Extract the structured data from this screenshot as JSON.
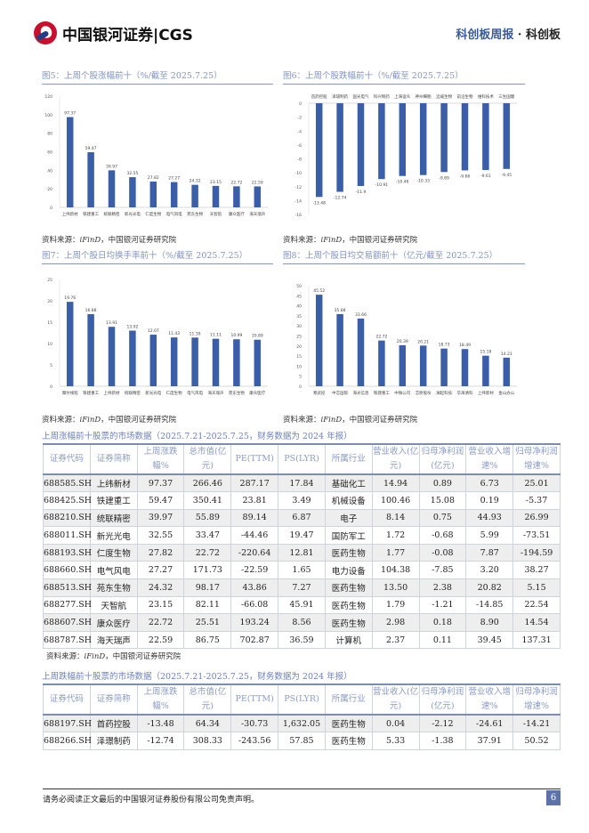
{
  "header": {
    "brand": "中国银河证券|CGS",
    "report": "科创板周报",
    "separator": " · ",
    "section": "科创板"
  },
  "figures": [
    {
      "caption": "图5：上周个股涨幅前十（%/截至 2025.7.25）",
      "source_prefix": "资料来源：",
      "source_italic": "iFinD",
      "source_rest": "，中国银河证券研究院"
    },
    {
      "caption": "图6：上周个股跌幅前十（%/截至 2025.7.25）",
      "source_prefix": "资料来源：",
      "source_italic": "iFinD",
      "source_rest": "，中国银河证券研究院"
    },
    {
      "caption": "图7：上周个股日均换手率前十（%/截至 2025.7.25）",
      "source_prefix": "资料来源：",
      "source_italic": "iFinD",
      "source_rest": "，中国银河证券研究院"
    },
    {
      "caption": "图8：上周个股日均交易额前十（亿元/截至 2025.7.25）",
      "source_prefix": "资料来源：",
      "source_italic": "iFinD",
      "source_rest": "，中国银河证券研究院"
    }
  ],
  "chart_data": [
    {
      "type": "bar",
      "categories": [
        "上纬新材",
        "铁建重工",
        "统联精密",
        "新光光电",
        "仁度生物",
        "电气风电",
        "苑东生物",
        "天智航",
        "康众医疗",
        "海天瑞声"
      ],
      "values": [
        97.37,
        59.47,
        39.97,
        32.55,
        27.82,
        27.27,
        24.32,
        23.15,
        22.72,
        22.59
      ],
      "ylim": [
        0,
        120
      ],
      "yticks": [
        0,
        20,
        40,
        60,
        80,
        100,
        120
      ],
      "color": "#3a5ea8"
    },
    {
      "type": "bar",
      "categories": [
        "首药控股",
        "泽璟制药",
        "国光电气",
        "科兴制药",
        "上海谊众",
        "神州细胞",
        "迈威生物",
        "前沿生物",
        "维科技术",
        "三生国健"
      ],
      "values": [
        -13.48,
        -12.74,
        -11.9,
        -10.91,
        -10.46,
        -10.33,
        -9.89,
        -9.66,
        -9.61,
        -9.45
      ],
      "ylim": [
        -16,
        0
      ],
      "yticks": [
        0,
        -2,
        -4,
        -6,
        -8,
        -10,
        -12,
        -14,
        -16
      ],
      "color": "#3a5ea8"
    },
    {
      "type": "bar",
      "categories": [
        "摩尔线程",
        "铁建重工",
        "上纬新材",
        "统联精密",
        "新光光电",
        "仁度生物",
        "电气风电",
        "海天瑞声",
        "苑东生物",
        "康众医疗"
      ],
      "values": [
        19.76,
        16.88,
        13.91,
        13.02,
        12.07,
        11.43,
        11.39,
        11.11,
        10.99,
        10.89
      ],
      "ylim": [
        0,
        25
      ],
      "yticks": [
        0,
        5,
        10,
        15,
        20,
        25
      ],
      "color": "#3a5ea8"
    },
    {
      "type": "bar",
      "categories": [
        "寒武纪",
        "中芯国际",
        "海光信息",
        "铁建重工",
        "中微公司",
        "芯原股份",
        "澜起科技",
        "华海清科",
        "上纬新材",
        "金山办公"
      ],
      "values": [
        45.52,
        35.88,
        33.66,
        22.72,
        20.39,
        20.21,
        18.73,
        18.49,
        15.18,
        14.21
      ],
      "ylim": [
        0,
        50
      ],
      "yticks": [
        0,
        5,
        10,
        15,
        20,
        25,
        30,
        35,
        40,
        45,
        50
      ],
      "color": "#3a5ea8"
    }
  ],
  "table1": {
    "title": "上周涨幅前十股票的市场数据（2025.7.21-2025.7.25，财务数据为 2024 年报）",
    "headers": [
      "证券代码",
      "证券简称",
      "上周涨跌幅%",
      "总市值(亿元)",
      "PE(TTM)",
      "PS(LYR)",
      "所属行业",
      "营业收入(亿元)",
      "归母净利润(亿元)",
      "营业收入增速%",
      "归母净利润增速%"
    ],
    "rows": [
      [
        "688585.SH",
        "上纬新材",
        "97.37",
        "266.46",
        "287.17",
        "17.84",
        "基础化工",
        "14.94",
        "0.89",
        "6.73",
        "25.01"
      ],
      [
        "688425.SH",
        "铁建重工",
        "59.47",
        "350.41",
        "23.81",
        "3.49",
        "机械设备",
        "100.46",
        "15.08",
        "0.19",
        "-5.37"
      ],
      [
        "688210.SH",
        "统联精密",
        "39.97",
        "55.89",
        "89.14",
        "6.87",
        "电子",
        "8.14",
        "0.75",
        "44.93",
        "26.99"
      ],
      [
        "688011.SH",
        "新光光电",
        "32.55",
        "33.47",
        "-44.46",
        "19.47",
        "国防军工",
        "1.72",
        "-0.68",
        "5.99",
        "-73.51"
      ],
      [
        "688193.SH",
        "仁度生物",
        "27.82",
        "22.72",
        "-220.64",
        "12.81",
        "医药生物",
        "1.77",
        "-0.08",
        "7.87",
        "-194.59"
      ],
      [
        "688660.SH",
        "电气风电",
        "27.27",
        "171.73",
        "-22.59",
        "1.65",
        "电力设备",
        "104.38",
        "-7.85",
        "3.20",
        "38.27"
      ],
      [
        "688513.SH",
        "苑东生物",
        "24.32",
        "98.17",
        "43.86",
        "7.27",
        "医药生物",
        "13.50",
        "2.38",
        "20.82",
        "5.15"
      ],
      [
        "688277.SH",
        "天智航",
        "23.15",
        "82.11",
        "-66.08",
        "45.91",
        "医药生物",
        "1.79",
        "-1.21",
        "-14.85",
        "22.54"
      ],
      [
        "688607.SH",
        "康众医疗",
        "22.72",
        "25.51",
        "193.24",
        "8.56",
        "医药生物",
        "2.98",
        "0.18",
        "8.90",
        "14.54"
      ],
      [
        "688787.SH",
        "海天瑞声",
        "22.59",
        "86.75",
        "702.87",
        "36.59",
        "计算机",
        "2.37",
        "0.11",
        "39.45",
        "137.31"
      ]
    ],
    "source_prefix": "资料来源：",
    "source_italic": "iFinD",
    "source_rest": "，中国银河证券研究院"
  },
  "table2": {
    "title": "上周跌幅前十股票的市场数据（2025.7.21-2025.7.25，财务数据为 2024 年报）",
    "headers": [
      "证券代码",
      "证券简称",
      "上周涨跌幅%",
      "总市值(亿元)",
      "PE(TTM)",
      "PS(LYR)",
      "所属行业",
      "营业收入(亿元)",
      "归母净利润(亿元)",
      "营业收入增速%",
      "归母净利润增速%"
    ],
    "rows": [
      [
        "688197.SH",
        "首药控股",
        "-13.48",
        "64.34",
        "-30.73",
        "1,632.05",
        "医药生物",
        "0.04",
        "-2.12",
        "-24.61",
        "-14.21"
      ],
      [
        "688266.SH",
        "泽璟制药",
        "-12.74",
        "308.33",
        "-243.56",
        "57.85",
        "医药生物",
        "5.33",
        "-1.38",
        "37.91",
        "50.52"
      ]
    ]
  },
  "footer": {
    "disclaimer": "请务必阅读正文最后的中国银河证券股份有限公司免责声明。",
    "page": "6"
  }
}
